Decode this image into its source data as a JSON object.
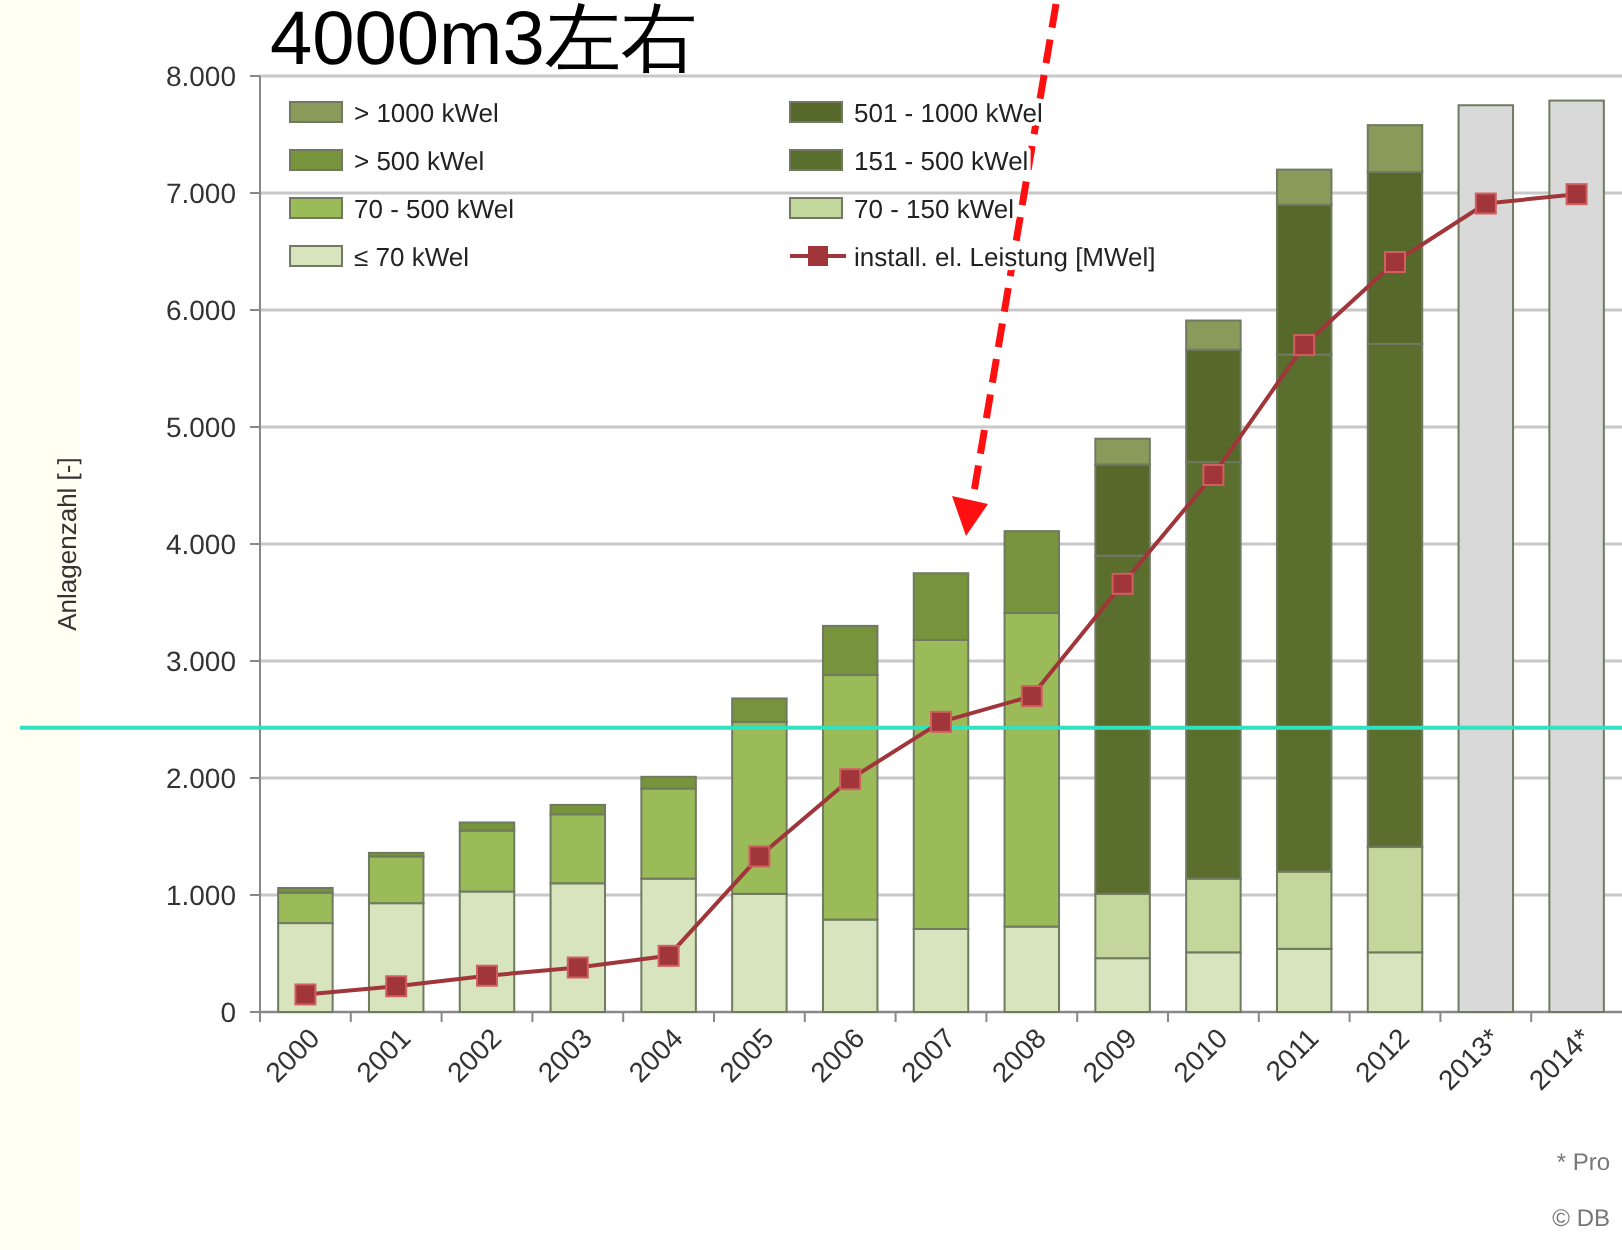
{
  "chart_data": {
    "type": "bar",
    "stacked": true,
    "categories": [
      "2000",
      "2001",
      "2002",
      "2003",
      "2004",
      "2005",
      "2006",
      "2007",
      "2008",
      "2009",
      "2010",
      "2011",
      "2012",
      "2013*",
      "2014*"
    ],
    "ylabel": "Anlagenzahl [-]",
    "ylim": [
      0,
      8000
    ],
    "yticks": [
      0,
      {
        "value": 1000,
        "label": "1.000"
      },
      {
        "value": 2000,
        "label": "2.000"
      },
      {
        "value": 3000,
        "label": "3.000"
      },
      {
        "value": 4000,
        "label": "4.000"
      },
      {
        "value": 5000,
        "label": "5.000"
      },
      {
        "value": 6000,
        "label": "6.000"
      },
      {
        "value": 7000,
        "label": "7.000"
      },
      {
        "value": 8000,
        "label": "8.000"
      }
    ],
    "grid": "y",
    "legend": "top left",
    "series": [
      {
        "name": "≤ 70 kWel",
        "color": "#d7e4bd",
        "values": [
          760,
          930,
          1030,
          1100,
          1140,
          1010,
          790,
          710,
          730,
          460,
          510,
          540,
          510,
          null,
          null
        ]
      },
      {
        "name": "70 - 150 kWel",
        "color": "#c3d69b",
        "values": [
          null,
          null,
          null,
          null,
          null,
          null,
          null,
          null,
          null,
          550,
          630,
          660,
          900,
          null,
          null
        ]
      },
      {
        "name": "70 - 500 kWel",
        "color": "#9bbb59",
        "values": [
          260,
          400,
          520,
          590,
          770,
          1470,
          2090,
          2470,
          2680,
          null,
          null,
          null,
          null,
          null,
          null
        ]
      },
      {
        "name": "151 - 500 kWel",
        "color": "#5a6e2e",
        "values": [
          null,
          null,
          null,
          null,
          null,
          null,
          null,
          null,
          null,
          2890,
          3560,
          4420,
          4300,
          null,
          null
        ]
      },
      {
        "name": "501 - 1000 kWel",
        "color": "#56692b",
        "values": [
          null,
          null,
          null,
          null,
          null,
          null,
          null,
          null,
          null,
          780,
          960,
          1280,
          1470,
          null,
          null
        ]
      },
      {
        "name": "> 500 kWel",
        "color": "#77933c",
        "values": [
          40,
          30,
          70,
          80,
          100,
          200,
          420,
          570,
          700,
          null,
          null,
          null,
          null,
          null,
          null
        ]
      },
      {
        "name": "> 1000 kWel",
        "color": "#8a9a5b",
        "values": [
          null,
          null,
          null,
          null,
          null,
          null,
          null,
          null,
          null,
          220,
          250,
          300,
          400,
          null,
          null
        ]
      },
      {
        "color": "#d9d9d9",
        "values": [
          null,
          null,
          null,
          null,
          null,
          null,
          null,
          null,
          null,
          null,
          null,
          null,
          null,
          7750,
          7790
        ]
      },
      {
        "name": "install. el. Leistung [MWel]",
        "type": "line",
        "color": "#a0353a",
        "marker": "square",
        "values": [
          150,
          220,
          310,
          380,
          480,
          1330,
          1990,
          2480,
          2700,
          3660,
          4590,
          5700,
          6410,
          6910,
          6990
        ]
      }
    ],
    "ref_lines": [
      {
        "axis": "y",
        "value": 2430,
        "color": "#33e0c0"
      }
    ],
    "annotations": [
      "4000m3左右",
      "* Pro",
      "© DB"
    ]
  }
}
